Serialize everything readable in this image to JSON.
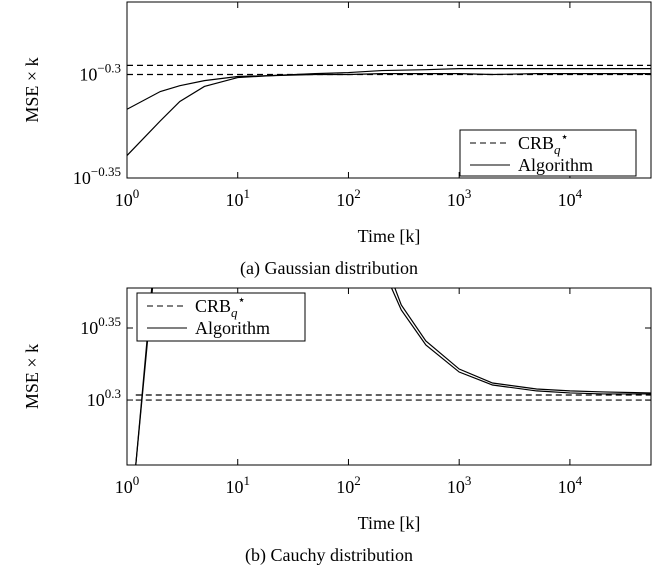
{
  "chart_data": [
    {
      "type": "line",
      "caption": "(a) Gaussian distribution",
      "xlabel": "Time [k]",
      "ylabel": "MSE × k",
      "log_x": true,
      "log_y": true,
      "legend": "lower right",
      "xlim": [
        1,
        54000
      ],
      "ylim": [
        0.4467,
        0.5433
      ],
      "xticks": [
        {
          "value": 1,
          "label": "10^0"
        },
        {
          "value": 10,
          "label": "10^1"
        },
        {
          "value": 100,
          "label": "10^2"
        },
        {
          "value": 1000,
          "label": "10^3"
        },
        {
          "value": 10000,
          "label": "10^4"
        }
      ],
      "yticks": [
        {
          "value": 0.4467,
          "label": "10^−0.35"
        },
        {
          "value": 0.5012,
          "label": "10^−0.3"
        }
      ],
      "x": [
        1,
        2,
        3,
        5,
        10,
        20,
        50,
        100,
        200,
        500,
        1000,
        2000,
        5000,
        10000,
        20000,
        54000
      ],
      "series": [
        {
          "name": "CRB_q^⋆",
          "color": "#000000",
          "dash": true,
          "values": [
            [
              0.5063,
              0.5063,
              0.5063,
              0.5063,
              0.5063,
              0.5063,
              0.5063,
              0.5063,
              0.5063,
              0.5063,
              0.5063,
              0.5063,
              0.5063,
              0.5063,
              0.5063,
              0.5063
            ],
            [
              0.5012,
              0.5012,
              0.5012,
              0.5012,
              0.5012,
              0.5012,
              0.5012,
              0.5012,
              0.5012,
              0.5012,
              0.5012,
              0.5012,
              0.5012,
              0.5012,
              0.5012,
              0.5012
            ]
          ]
        },
        {
          "name": "Algorithm",
          "color": "#000000",
          "dash": false,
          "values": [
            [
              0.4822,
              0.4918,
              0.495,
              0.4978,
              0.5001,
              0.5006,
              0.5017,
              0.5023,
              0.5034,
              0.5039,
              0.5045,
              0.5045,
              0.5045,
              0.5045,
              0.5045,
              0.5045
            ],
            [
              0.458,
              0.476,
              0.4864,
              0.4946,
              0.4995,
              0.5006,
              0.5012,
              0.5012,
              0.5017,
              0.5017,
              0.5017,
              0.5012,
              0.5017,
              0.5017,
              0.5017,
              0.5017
            ]
          ]
        }
      ]
    },
    {
      "type": "line",
      "caption": "(b) Cauchy distribution",
      "xlabel": "Time [k]",
      "ylabel": "MSE × k",
      "log_x": true,
      "log_y": true,
      "legend": "upper left",
      "xlim": [
        1,
        54000
      ],
      "ylim": [
        1.7986,
        2.3864
      ],
      "xticks": [
        {
          "value": 1,
          "label": "10^0"
        },
        {
          "value": 10,
          "label": "10^1"
        },
        {
          "value": 100,
          "label": "10^2"
        },
        {
          "value": 1000,
          "label": "10^3"
        },
        {
          "value": 10000,
          "label": "10^4"
        }
      ],
      "yticks": [
        {
          "value": 1.9953,
          "label": "10^0.3"
        },
        {
          "value": 2.2387,
          "label": "10^0.35"
        }
      ],
      "x": [
        1.2,
        1.7,
        10,
        245,
        300,
        500,
        1000,
        2000,
        5000,
        10000,
        20000,
        54000
      ],
      "series": [
        {
          "name": "CRB_q^⋆",
          "color": "#000000",
          "dash": true,
          "values": [
            [
              2.0114,
              2.0114,
              2.0114,
              2.0114,
              2.0114,
              2.0114,
              2.0114,
              2.0114,
              2.0114,
              2.0114,
              2.0114,
              2.0114
            ],
            [
              1.9953,
              1.9953,
              1.9953,
              1.9953,
              1.9953,
              1.9953,
              1.9953,
              1.9953,
              1.9953,
              1.9953,
              1.9953,
              1.9953
            ]
          ]
        },
        {
          "name": "Algorithm",
          "color": "#000000",
          "dash": false,
          "values": [
            [
              1.7986,
              2.3864,
              null,
              2.3864,
              2.304,
              2.179,
              2.0866,
              2.0438,
              2.0246,
              2.0181,
              2.0149,
              2.0149
            ],
            [
              1.7986,
              2.42,
              null,
              2.42,
              2.3227,
              2.1928,
              2.0966,
              2.0503,
              2.0307,
              2.0246,
              2.0213,
              2.0181
            ]
          ]
        }
      ]
    }
  ]
}
